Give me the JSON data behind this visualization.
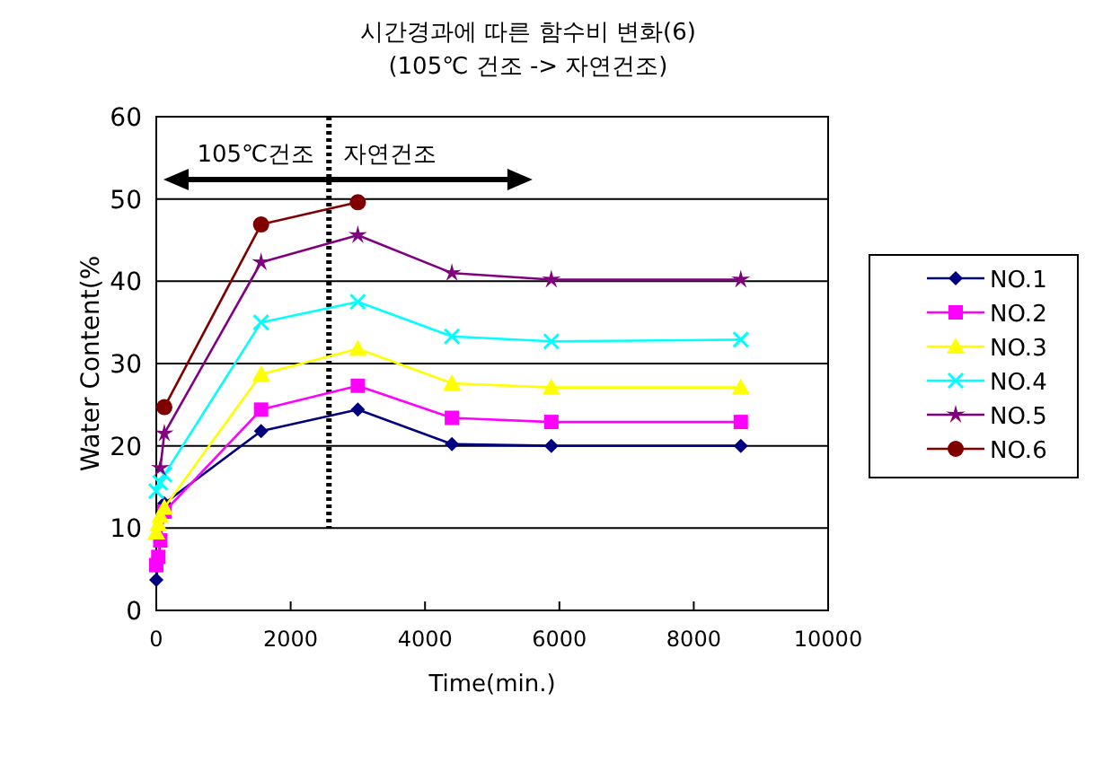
{
  "chart_data": {
    "type": "line",
    "title": "시간경과에 따른 함수비 변화(6)",
    "subtitle": "(105℃ 건조 -> 자연건조)",
    "xlabel": "Time(min.)",
    "ylabel": "Water Content(%",
    "xlim": [
      0,
      10000
    ],
    "xticks": [
      0,
      2000,
      4000,
      6000,
      8000,
      10000
    ],
    "ylim": [
      0,
      60
    ],
    "yticks": [
      0,
      10,
      20,
      30,
      40,
      50,
      60
    ],
    "grid": "y",
    "legend": "right",
    "series": [
      {
        "name": "NO.1",
        "color": "#000080",
        "marker": "diamond",
        "x": [
          0,
          120,
          1560,
          3000,
          4400,
          5880,
          8700
        ],
        "values": [
          3.7,
          13,
          21.8,
          24.4,
          20.2,
          20,
          20
        ]
      },
      {
        "name": "NO.2",
        "color": "#ff00ff",
        "marker": "square",
        "x": [
          0,
          30,
          60,
          120,
          1560,
          3000,
          4400,
          5880,
          8700
        ],
        "values": [
          5.5,
          6.5,
          8.5,
          12,
          24.4,
          27.3,
          23.4,
          22.9,
          22.9
        ]
      },
      {
        "name": "NO.3",
        "color": "#ffff00",
        "marker": "triangle",
        "x": [
          0,
          30,
          60,
          120,
          1560,
          3000,
          4400,
          5880,
          8700
        ],
        "values": [
          9.5,
          10.5,
          11.5,
          12.5,
          28.7,
          31.8,
          27.6,
          27.1,
          27.1
        ]
      },
      {
        "name": "NO.4",
        "color": "#00ffff",
        "marker": "cross",
        "x": [
          0,
          60,
          120,
          1560,
          3000,
          4400,
          5880,
          8700
        ],
        "values": [
          14.5,
          15.5,
          16.5,
          35,
          37.5,
          33.3,
          32.7,
          32.9
        ]
      },
      {
        "name": "NO.5",
        "color": "#800080",
        "marker": "star",
        "x": [
          60,
          120,
          1560,
          3000,
          4400,
          5880,
          8700
        ],
        "values": [
          17.3,
          21.5,
          42.3,
          45.6,
          41,
          40.2,
          40.2
        ]
      },
      {
        "name": "NO.6",
        "color": "#800000",
        "marker": "circle",
        "x": [
          120,
          1560,
          3000
        ],
        "values": [
          24.7,
          46.9,
          49.6
        ]
      }
    ],
    "ref_lines": [
      {
        "axis": "x",
        "value": 2570,
        "line_style": "dotted",
        "color": "#000000"
      }
    ],
    "annotations": [
      "105℃건조",
      "자연건조"
    ]
  }
}
